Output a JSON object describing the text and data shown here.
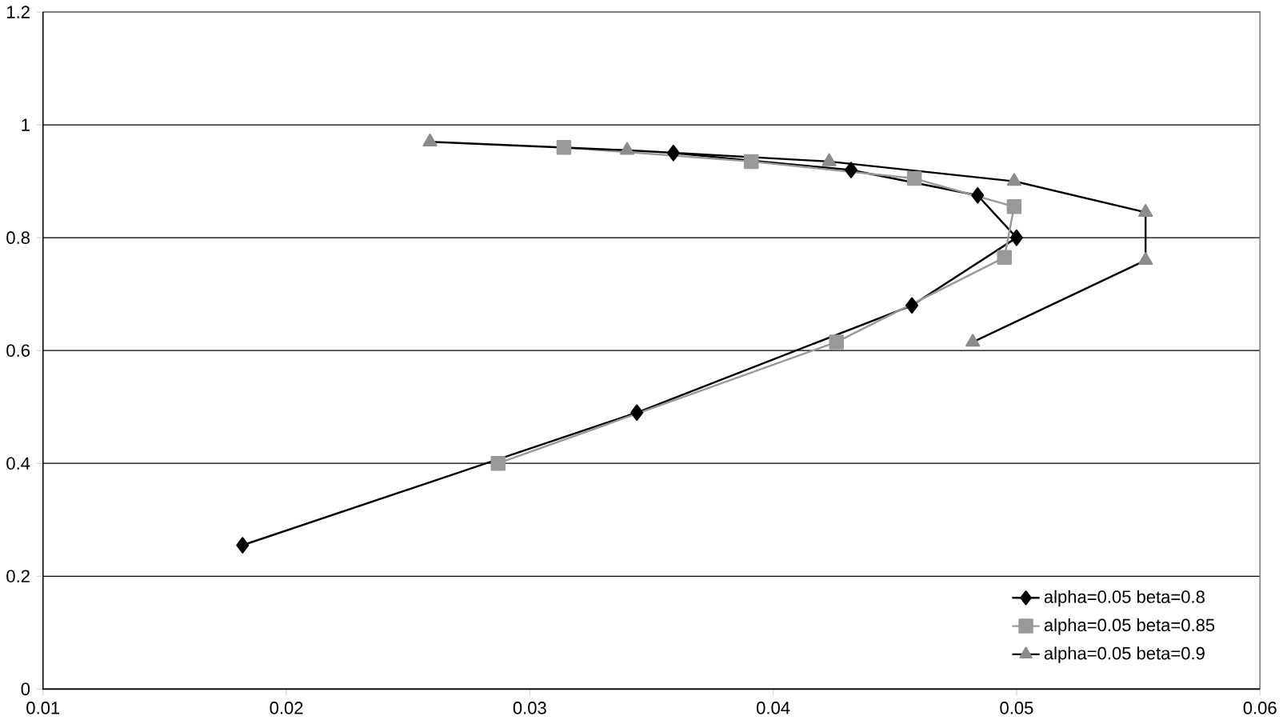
{
  "chart_data": {
    "type": "line",
    "xlim": [
      0.01,
      0.06
    ],
    "ylim": [
      0,
      1.2
    ],
    "xticks": [
      0.01,
      0.02,
      0.03,
      0.04,
      0.05,
      0.06
    ],
    "yticks": [
      0,
      0.2,
      0.4,
      0.6,
      0.8,
      1,
      1.2
    ],
    "grid": "y",
    "legend": "bottom right",
    "series": [
      {
        "name": "alpha=0.05   beta=0.8",
        "color": "#000000",
        "marker": "diamond",
        "x": [
          0.0182,
          0.0344,
          0.0457,
          0.05,
          0.0484,
          0.0432,
          0.0359
        ],
        "values": [
          0.255,
          0.49,
          0.68,
          0.8,
          0.875,
          0.92,
          0.95
        ]
      },
      {
        "name": "alpha=0.05   beta=0.85",
        "color": "#999999",
        "marker": "square",
        "x": [
          0.0287,
          0.0426,
          0.0495,
          0.0499,
          0.0458,
          0.0391,
          0.0314
        ],
        "values": [
          0.4,
          0.615,
          0.765,
          0.855,
          0.905,
          0.935,
          0.96
        ]
      },
      {
        "name": "alpha=0.05   beta=0.9",
        "color": "#8c8c8c",
        "marker": "triangle",
        "x": [
          0.0482,
          0.0553,
          0.0553,
          0.0499,
          0.0423,
          0.034,
          0.0259
        ],
        "values": [
          0.615,
          0.76,
          0.845,
          0.9,
          0.935,
          0.955,
          0.97
        ]
      }
    ]
  }
}
